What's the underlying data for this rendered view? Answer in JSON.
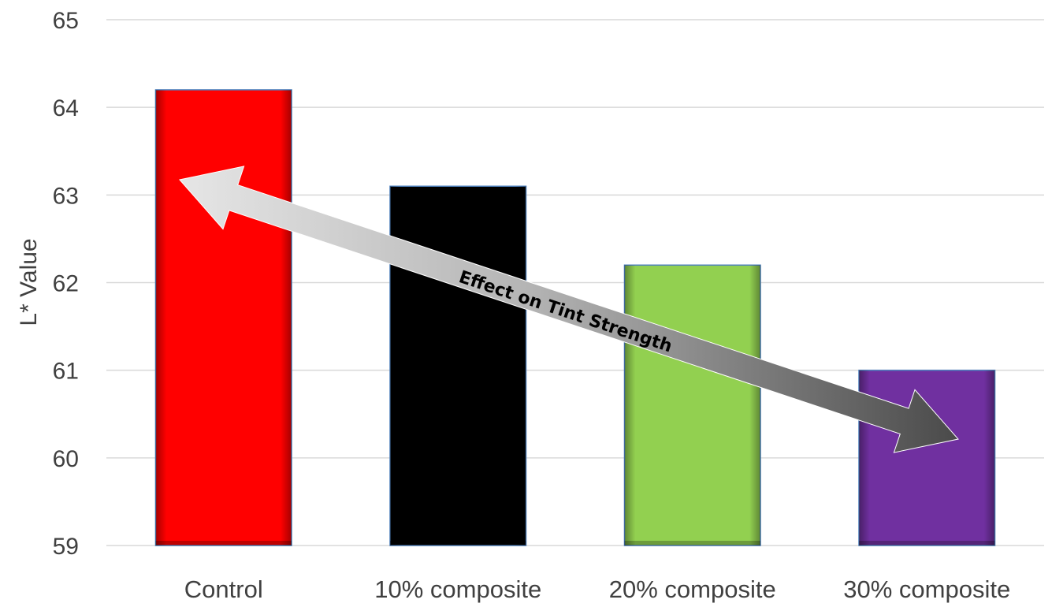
{
  "chart_data": {
    "type": "bar",
    "categories": [
      "Control",
      "10% composite",
      "20% composite",
      "30% composite"
    ],
    "values": [
      64.2,
      63.1,
      62.2,
      61.0
    ],
    "title": "",
    "xlabel": "",
    "ylabel": "L* Value",
    "ylim": [
      59,
      65
    ],
    "yticks": [
      59,
      60,
      61,
      62,
      63,
      64,
      65
    ],
    "grid": true,
    "legend": "none",
    "bar_colors": [
      "#ff0000",
      "#000000",
      "#92d050",
      "#7030a0"
    ],
    "annotation": {
      "text": "Effect on Tint Strength",
      "type": "double-arrow",
      "from_category": "Control",
      "to_category": "30% composite"
    }
  }
}
